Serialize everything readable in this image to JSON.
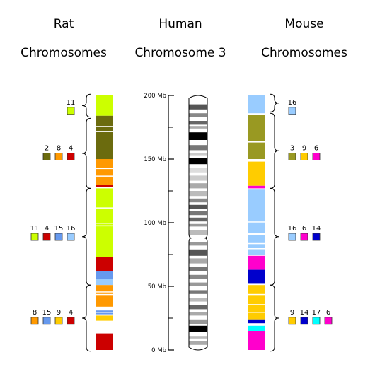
{
  "headings": {
    "rat": [
      "Rat",
      "Chromosomes"
    ],
    "human": [
      "Human",
      "Chromosome 3"
    ],
    "mouse": [
      "Mouse",
      "Chromosomes"
    ]
  },
  "axis": {
    "max_mb": 200,
    "labels": [
      {
        "mb": 200,
        "text": "200 Mb"
      },
      {
        "mb": 150,
        "text": "150 Mb"
      },
      {
        "mb": 100,
        "text": "100 Mb"
      },
      {
        "mb": 50,
        "text": "50 Mb"
      },
      {
        "mb": 0,
        "text": "0 Mb"
      }
    ],
    "minor_ticks_mb": [
      175,
      125,
      75,
      25
    ]
  },
  "colors": {
    "rat": {
      "1": "#6b6b0e",
      "2": "#6b6b0e",
      "4": "#cc0000",
      "8": "#ff9900",
      "9": "#ffcc00",
      "11": "#ccff00",
      "15": "#6699ee",
      "16": "#99ccff"
    },
    "mouse": {
      "3": "#999922",
      "6": "#ff00cc",
      "9": "#ffcc00",
      "14": "#0000cc",
      "16": "#99ccff",
      "17": "#00ffff"
    }
  },
  "rat_groups": [
    {
      "label_mb": 189,
      "chromosomes": [
        "11"
      ],
      "brace": [
        201,
        183
      ]
    },
    {
      "label_mb": 153,
      "chromosomes": [
        "2",
        "8",
        "4"
      ],
      "brace": [
        182,
        127
      ]
    },
    {
      "label_mb": 90,
      "chromosomes": [
        "11",
        "4",
        "15",
        "16"
      ],
      "brace": [
        127,
        51
      ]
    },
    {
      "label_mb": 24,
      "chromosomes": [
        "8",
        "15",
        "9",
        "4"
      ],
      "brace": [
        51,
        -1
      ]
    }
  ],
  "mouse_groups": [
    {
      "label_mb": 189,
      "chromosomes": [
        "16"
      ],
      "brace": [
        201,
        187
      ]
    },
    {
      "label_mb": 153,
      "chromosomes": [
        "3",
        "9",
        "6"
      ],
      "brace": [
        186,
        127
      ]
    },
    {
      "label_mb": 90,
      "chromosomes": [
        "16",
        "6",
        "14"
      ],
      "brace": [
        127,
        51
      ]
    },
    {
      "label_mb": 24,
      "chromosomes": [
        "9",
        "14",
        "17",
        "6"
      ],
      "brace": [
        51,
        -1
      ]
    }
  ],
  "rat_blocks": [
    {
      "from": 200,
      "to": 184,
      "chr": "11"
    },
    {
      "from": 184,
      "to": 170,
      "chr": "2"
    },
    {
      "from": 170,
      "to": 150,
      "chr": "2"
    },
    {
      "from": 150,
      "to": 130,
      "chr": "8"
    },
    {
      "from": 130,
      "to": 128,
      "chr": "4"
    },
    {
      "from": 127,
      "to": 92,
      "chr": "11"
    },
    {
      "from": 92,
      "to": 73,
      "chr": "11"
    },
    {
      "from": 73,
      "to": 62,
      "chr": "4"
    },
    {
      "from": 62,
      "to": 56,
      "chr": "15"
    },
    {
      "from": 56,
      "to": 51,
      "chr": "16"
    },
    {
      "from": 51,
      "to": 40,
      "chr": "8"
    },
    {
      "from": 40,
      "to": 34,
      "chr": "8"
    },
    {
      "from": 31,
      "to": 28,
      "chr": "15"
    },
    {
      "from": 27,
      "to": 23,
      "chr": "9"
    },
    {
      "from": 13,
      "to": 0,
      "chr": "4"
    }
  ],
  "mouse_blocks": [
    {
      "from": 200,
      "to": 186,
      "chr": "16"
    },
    {
      "from": 185,
      "to": 164,
      "chr": "3"
    },
    {
      "from": 163,
      "to": 150,
      "chr": "3"
    },
    {
      "from": 148,
      "to": 129,
      "chr": "9"
    },
    {
      "from": 129,
      "to": 127,
      "chr": "6"
    },
    {
      "from": 126,
      "to": 92,
      "chr": "16"
    },
    {
      "from": 90,
      "to": 75,
      "chr": "16"
    },
    {
      "from": 74,
      "to": 63,
      "chr": "6"
    },
    {
      "from": 63,
      "to": 52,
      "chr": "14"
    },
    {
      "from": 51,
      "to": 24,
      "chr": "9"
    },
    {
      "from": 24,
      "to": 21,
      "chr": "14"
    },
    {
      "from": 19,
      "to": 15,
      "chr": "17"
    },
    {
      "from": 15,
      "to": 0,
      "chr": "6"
    }
  ],
  "human_bands": [
    {
      "from": 193,
      "to": 189,
      "shade": "#555555"
    },
    {
      "from": 186,
      "to": 183,
      "shade": "#888888"
    },
    {
      "from": 180,
      "to": 177,
      "shade": "#666666"
    },
    {
      "from": 176,
      "to": 174,
      "shade": "#aaaaaa"
    },
    {
      "from": 171,
      "to": 165,
      "shade": "#000000"
    },
    {
      "from": 161,
      "to": 157,
      "shade": "#777777"
    },
    {
      "from": 155,
      "to": 153,
      "shade": "#cccccc"
    },
    {
      "from": 151,
      "to": 146,
      "shade": "#000000"
    },
    {
      "from": 143,
      "to": 139,
      "shade": "#dddddd"
    },
    {
      "from": 137,
      "to": 133,
      "shade": "#cccccc"
    },
    {
      "from": 131,
      "to": 127,
      "shade": "#aaaaaa"
    },
    {
      "from": 125,
      "to": 121,
      "shade": "#bbbbbb"
    },
    {
      "from": 119,
      "to": 116,
      "shade": "#888888"
    },
    {
      "from": 114,
      "to": 111,
      "shade": "#555555"
    },
    {
      "from": 109,
      "to": 106,
      "shade": "#777777"
    },
    {
      "from": 104,
      "to": 101,
      "shade": "#666666"
    },
    {
      "from": 99,
      "to": 97,
      "shade": "#999999"
    },
    {
      "from": 94,
      "to": 90,
      "shade": "#bbbbbb"
    },
    {
      "from": 85,
      "to": 82,
      "shade": "#999999"
    },
    {
      "from": 79,
      "to": 74,
      "shade": "#555555"
    },
    {
      "from": 72,
      "to": 68,
      "shade": "#aaaaaa"
    },
    {
      "from": 65,
      "to": 62,
      "shade": "#777777"
    },
    {
      "from": 59,
      "to": 56,
      "shade": "#888888"
    },
    {
      "from": 53,
      "to": 50,
      "shade": "#999999"
    },
    {
      "from": 47,
      "to": 44,
      "shade": "#777777"
    },
    {
      "from": 41,
      "to": 38,
      "shade": "#bbbbbb"
    },
    {
      "from": 35,
      "to": 32,
      "shade": "#666666"
    },
    {
      "from": 30,
      "to": 27,
      "shade": "#aaaaaa"
    },
    {
      "from": 24,
      "to": 20,
      "shade": "#999999"
    },
    {
      "from": 19,
      "to": 14,
      "shade": "#000000"
    },
    {
      "from": 11,
      "to": 9,
      "shade": "#bbbbbb"
    },
    {
      "from": 7,
      "to": 4,
      "shade": "#aaaaaa"
    }
  ],
  "centromere_mb": 88
}
